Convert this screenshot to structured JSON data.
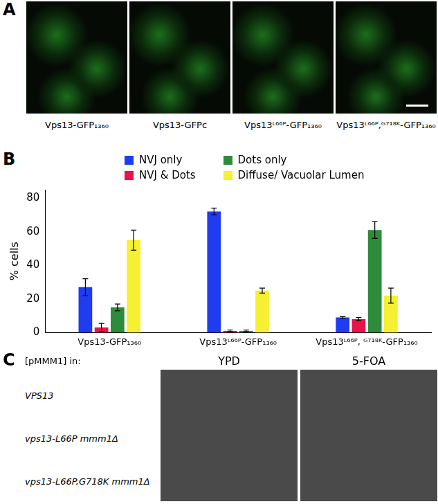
{
  "panel_a": {
    "label": "A",
    "images": [
      "Vps13-GFP₁₃₆₀",
      "Vps13-GFPc",
      "Vps13ᴸ⁶⁶ᴾ-GFP₁₃₆₀",
      "Vps13ᴸ⁶⁶ᴾ,ᴳ⁷¹⁸ᴷ-GFP₁₃₆₀"
    ]
  },
  "panel_b": {
    "label": "B"
  },
  "chart_data": {
    "type": "bar",
    "categories": [
      "Vps13-GFP₁₃₆₀",
      "Vps13ᴸ⁶⁶ᴾ-GFP₁₃₆₀",
      "Vps13ᴸ⁶⁶ᴾ, ᴳ⁷¹⁸ᴷ-GFP₁₃₆₀"
    ],
    "series": [
      {
        "name": "NVJ only",
        "color": "#1f3cf0",
        "values": [
          27,
          72,
          9
        ],
        "errors": [
          5,
          2,
          0.5
        ]
      },
      {
        "name": "NVJ & Dots",
        "color": "#e8124c",
        "values": [
          3,
          1,
          8
        ],
        "errors": [
          2.5,
          0.5,
          1
        ]
      },
      {
        "name": "Dots only",
        "color": "#2e8b3c",
        "values": [
          15,
          1,
          61
        ],
        "errors": [
          2,
          0.5,
          5
        ]
      },
      {
        "name": "Diffuse/ Vacuolar Lumen",
        "color": "#f5f032",
        "values": [
          55,
          25,
          22
        ],
        "errors": [
          6,
          1.5,
          4.5
        ]
      }
    ],
    "y_label": "% cells",
    "ylim": [
      0,
      85
    ],
    "yticks": [
      0,
      20,
      40,
      60,
      80
    ],
    "legend": "top",
    "grid": false
  },
  "panel_c": {
    "label": "C",
    "row_header": "[pMMM1] in:",
    "columns": [
      "YPD",
      "5-FOA"
    ],
    "rows": [
      "VPS13",
      "vps13-L66P mmm1Δ",
      "vps13-L66P,G718K mmm1Δ"
    ]
  }
}
